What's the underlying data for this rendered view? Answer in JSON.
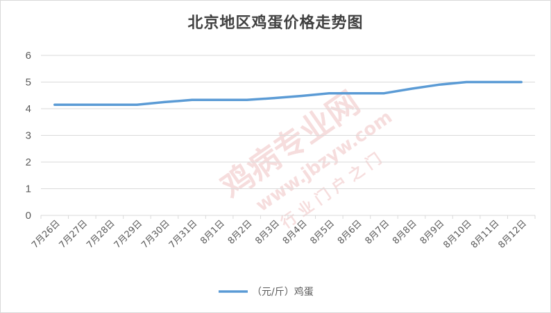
{
  "chart_data": {
    "type": "line",
    "title": "北京地区鸡蛋价格走势图",
    "categories": [
      "7月26日",
      "7月27日",
      "7月28日",
      "7月29日",
      "7月30日",
      "7月31日",
      "8月1日",
      "8月2日",
      "8月3日",
      "8月4日",
      "8月5日",
      "8月6日",
      "8月7日",
      "8月8日",
      "8月9日",
      "8月10日",
      "8月11日",
      "8月12日"
    ],
    "series": [
      {
        "name": "（元/斤）鸡蛋",
        "values": [
          4.15,
          4.15,
          4.15,
          4.15,
          4.25,
          4.33,
          4.33,
          4.33,
          4.4,
          4.48,
          4.58,
          4.58,
          4.58,
          4.75,
          4.9,
          5.0,
          5.0,
          5.0
        ]
      }
    ],
    "yticks": [
      0,
      1,
      2,
      3,
      4,
      5,
      6
    ],
    "ylim": [
      0,
      6
    ],
    "grid": true,
    "legend_position": "bottom",
    "colors": {
      "line": "#5b9bd5",
      "grid": "#d9d9d9"
    }
  },
  "watermark": {
    "text1": "鸡病专业网",
    "text2": "www.jbzyw.com",
    "text3": "行 业 门 户 之 门"
  }
}
